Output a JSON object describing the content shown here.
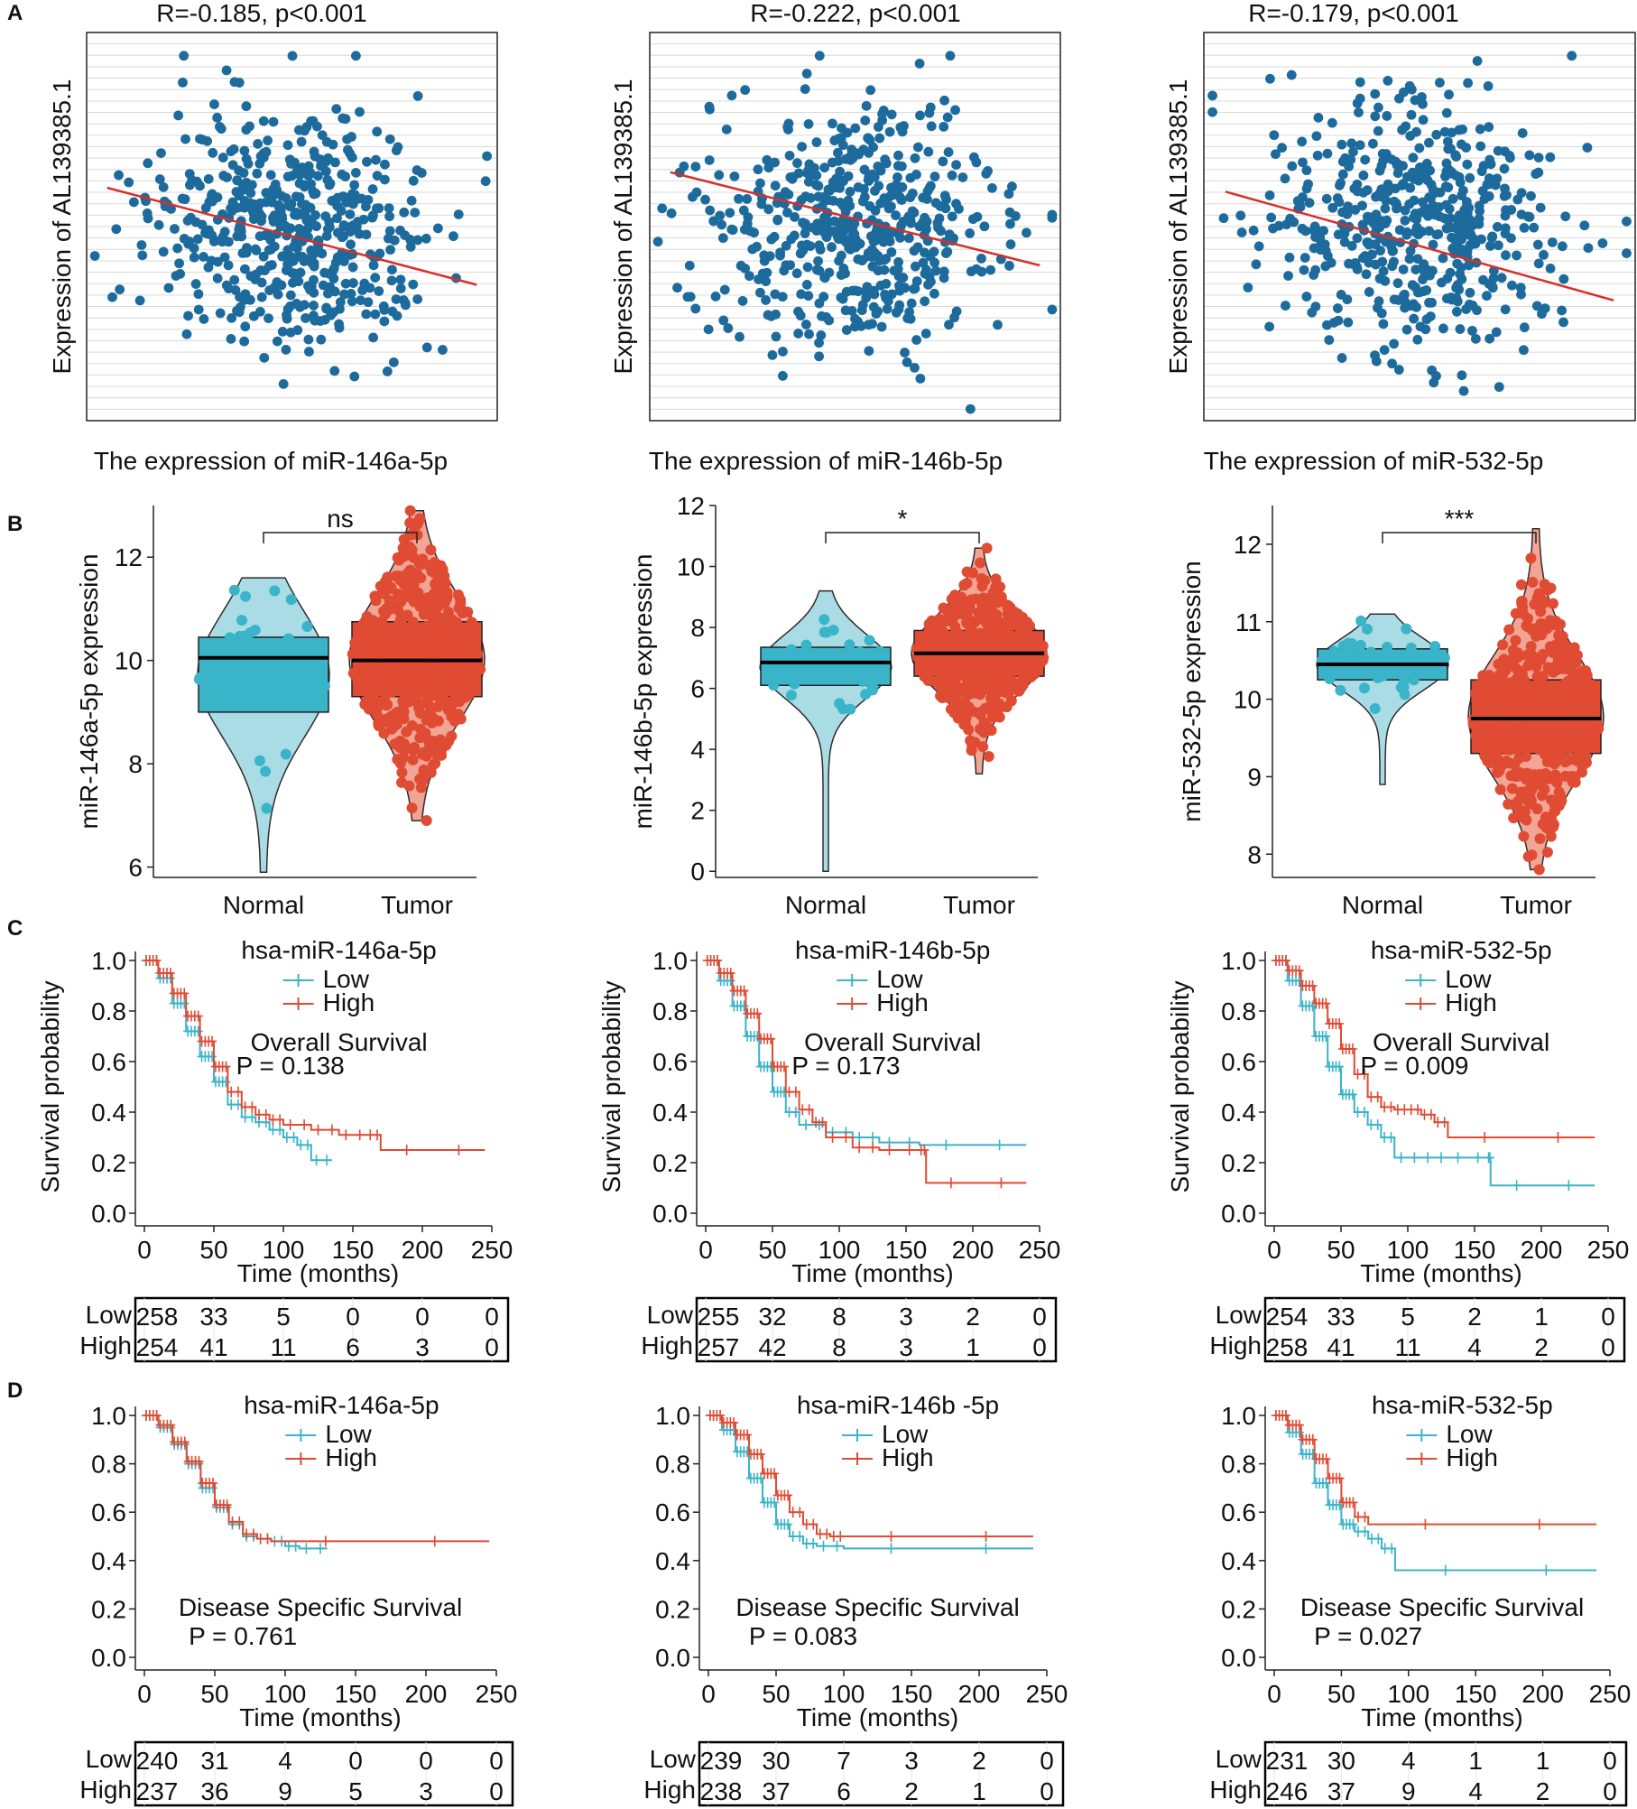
{
  "colors": {
    "scatter_point": "#1d6a9c",
    "fit_line": "#d7302a",
    "low": "#3ab4c8",
    "high": "#e04b33",
    "grid": "#d9d9d9",
    "axis": "#222222"
  },
  "panel_letters": [
    "A",
    "B",
    "C",
    "D"
  ],
  "chart_data": [
    {
      "type": "scatter",
      "panel": "A",
      "id": "a1",
      "title": "R=-0.185, p<0.001",
      "xlabel": "The expression of miR-146a-5p",
      "ylabel": "Expression of AL139385.1",
      "grid": true,
      "n_points_approx": 520,
      "trend": {
        "x": [
          0,
          1
        ],
        "y": [
          0.6,
          0.35
        ]
      }
    },
    {
      "type": "scatter",
      "panel": "A",
      "id": "a2",
      "title": "R=-0.222, p<0.001",
      "xlabel": "The expression of miR-146b-5p",
      "ylabel": "Expression of AL139385.1",
      "grid": true,
      "n_points_approx": 520,
      "trend": {
        "x": [
          0,
          1
        ],
        "y": [
          0.64,
          0.4
        ]
      }
    },
    {
      "type": "scatter",
      "panel": "A",
      "id": "a3",
      "title": "R=-0.179, p<0.001",
      "xlabel": "The expression of miR-532-5p",
      "ylabel": "Expression of AL139385.1",
      "grid": true,
      "n_points_approx": 520,
      "trend": {
        "x": [
          0,
          1
        ],
        "y": [
          0.59,
          0.31
        ]
      }
    },
    {
      "type": "violin_box",
      "panel": "B",
      "id": "b1",
      "ylabel": "miR-146a-5p expression",
      "categories": [
        "Normal",
        "Tumor"
      ],
      "ylim": [
        5.8,
        13.0
      ],
      "yticks": [
        6,
        8,
        10,
        12
      ],
      "significance": "ns",
      "groups": [
        {
          "name": "Normal",
          "min": 5.9,
          "q1": 9.0,
          "median": 10.05,
          "q3": 10.45,
          "max": 11.6,
          "n": 36
        },
        {
          "name": "Tumor",
          "min": 6.9,
          "q1": 9.3,
          "median": 10.0,
          "q3": 10.75,
          "max": 12.9,
          "n": 480
        }
      ]
    },
    {
      "type": "violin_box",
      "panel": "B",
      "id": "b2",
      "ylabel": "miR-146b-5p expression",
      "categories": [
        "Normal",
        "Tumor"
      ],
      "ylim": [
        -0.2,
        12.0
      ],
      "yticks": [
        0,
        2,
        4,
        6,
        8,
        10,
        12
      ],
      "significance": "*",
      "groups": [
        {
          "name": "Normal",
          "min": 0.0,
          "q1": 6.1,
          "median": 6.85,
          "q3": 7.35,
          "max": 9.2,
          "n": 36
        },
        {
          "name": "Tumor",
          "min": 3.2,
          "q1": 6.4,
          "median": 7.15,
          "q3": 7.9,
          "max": 10.6,
          "n": 480
        }
      ]
    },
    {
      "type": "violin_box",
      "panel": "B",
      "id": "b3",
      "ylabel": "miR-532-5p expression",
      "categories": [
        "Normal",
        "Tumor"
      ],
      "ylim": [
        7.7,
        12.5
      ],
      "yticks": [
        8,
        9,
        10,
        11,
        12
      ],
      "significance": "***",
      "groups": [
        {
          "name": "Normal",
          "min": 8.9,
          "q1": 10.25,
          "median": 10.45,
          "q3": 10.65,
          "max": 11.1,
          "n": 36
        },
        {
          "name": "Tumor",
          "min": 7.8,
          "q1": 9.3,
          "median": 9.75,
          "q3": 10.25,
          "max": 12.2,
          "n": 480
        }
      ]
    },
    {
      "type": "survival",
      "panel": "C",
      "id": "c1",
      "title": "hsa-miR-146a-5p",
      "subtitle": "Overall Survival",
      "pvalue": "P = 0.138",
      "ylabel": "Survival probability",
      "xlabel": "Time (months)",
      "xlim": [
        0,
        250
      ],
      "xticks": [
        0,
        50,
        100,
        150,
        200,
        250
      ],
      "ylim": [
        0,
        1
      ],
      "yticks": [
        "0.0",
        "0.2",
        "0.4",
        "0.6",
        "0.8",
        "1.0"
      ],
      "legend": [
        "Low",
        "High"
      ],
      "series": [
        {
          "name": "Low",
          "x": [
            0,
            10,
            20,
            30,
            40,
            50,
            60,
            70,
            80,
            90,
            100,
            110,
            120,
            135
          ],
          "y": [
            1.0,
            0.93,
            0.83,
            0.72,
            0.62,
            0.52,
            0.43,
            0.38,
            0.36,
            0.33,
            0.3,
            0.27,
            0.21,
            0.21
          ]
        },
        {
          "name": "High",
          "x": [
            0,
            10,
            20,
            30,
            40,
            50,
            60,
            70,
            80,
            90,
            100,
            120,
            140,
            160,
            170,
            245
          ],
          "y": [
            1.0,
            0.95,
            0.87,
            0.78,
            0.68,
            0.58,
            0.48,
            0.42,
            0.39,
            0.37,
            0.35,
            0.33,
            0.31,
            0.31,
            0.25,
            0.25
          ]
        }
      ],
      "risk_table": {
        "labels": [
          "Low",
          "High"
        ],
        "Low": [
          "258",
          "33",
          "5",
          "0",
          "0",
          "0"
        ],
        "High": [
          "254",
          "41",
          "11",
          "6",
          "3",
          "0"
        ]
      }
    },
    {
      "type": "survival",
      "panel": "C",
      "id": "c2",
      "title": "hsa-miR-146b-5p",
      "subtitle": "Overall Survival",
      "pvalue": "P = 0.173",
      "ylabel": "Survival probability",
      "xlabel": "Time (months)",
      "xlim": [
        0,
        250
      ],
      "xticks": [
        0,
        50,
        100,
        150,
        200,
        250
      ],
      "ylim": [
        0,
        1
      ],
      "yticks": [
        "0.0",
        "0.2",
        "0.4",
        "0.6",
        "0.8",
        "1.0"
      ],
      "legend": [
        "Low",
        "High"
      ],
      "series": [
        {
          "name": "Low",
          "x": [
            0,
            10,
            20,
            30,
            40,
            50,
            60,
            70,
            90,
            110,
            130,
            160,
            240
          ],
          "y": [
            1.0,
            0.92,
            0.82,
            0.7,
            0.58,
            0.48,
            0.4,
            0.35,
            0.32,
            0.3,
            0.28,
            0.27,
            0.27
          ]
        },
        {
          "name": "High",
          "x": [
            0,
            10,
            20,
            30,
            40,
            50,
            60,
            70,
            80,
            90,
            110,
            130,
            160,
            165,
            240
          ],
          "y": [
            1.0,
            0.95,
            0.88,
            0.79,
            0.69,
            0.58,
            0.48,
            0.41,
            0.36,
            0.3,
            0.26,
            0.25,
            0.25,
            0.12,
            0.12
          ]
        }
      ],
      "risk_table": {
        "labels": [
          "Low",
          "High"
        ],
        "Low": [
          "255",
          "32",
          "8",
          "3",
          "2",
          "0"
        ],
        "High": [
          "257",
          "42",
          "8",
          "3",
          "1",
          "0"
        ]
      }
    },
    {
      "type": "survival",
      "panel": "C",
      "id": "c3",
      "title": "hsa-miR-532-5p",
      "subtitle": "Overall Survival",
      "pvalue": "P = 0.009",
      "ylabel": "Survival probability",
      "xlabel": "Time (months)",
      "xlim": [
        0,
        250
      ],
      "xticks": [
        0,
        50,
        100,
        150,
        200,
        250
      ],
      "xticklabels": [
        "0",
        "50",
        "100",
        "150",
        "200",
        "250"
      ],
      "ylim": [
        0,
        1
      ],
      "yticks": [
        "0.0",
        "0.2",
        "0.4",
        "0.6",
        "0.8",
        "1.0"
      ],
      "legend": [
        "Low",
        "High"
      ],
      "series": [
        {
          "name": "Low",
          "x": [
            0,
            10,
            20,
            30,
            40,
            50,
            60,
            70,
            80,
            90,
            110,
            130,
            160,
            162,
            240
          ],
          "y": [
            1.0,
            0.92,
            0.82,
            0.7,
            0.58,
            0.47,
            0.4,
            0.35,
            0.3,
            0.22,
            0.22,
            0.22,
            0.22,
            0.11,
            0.11
          ]
        },
        {
          "name": "High",
          "x": [
            0,
            10,
            20,
            30,
            40,
            50,
            60,
            70,
            80,
            90,
            100,
            110,
            120,
            130,
            240
          ],
          "y": [
            1.0,
            0.96,
            0.9,
            0.83,
            0.75,
            0.65,
            0.55,
            0.46,
            0.42,
            0.41,
            0.41,
            0.39,
            0.36,
            0.3,
            0.3
          ]
        }
      ],
      "risk_table": {
        "labels": [
          "Low",
          "High"
        ],
        "Low": [
          "254",
          "33",
          "5",
          "2",
          "1",
          "0"
        ],
        "High": [
          "258",
          "41",
          "11",
          "4",
          "2",
          "0"
        ]
      }
    },
    {
      "type": "survival",
      "panel": "D",
      "id": "d1",
      "title": "hsa-miR-146a-5p",
      "subtitle": "Disease Specific Survival",
      "pvalue": "P = 0.761",
      "xlabel": "Time (months)",
      "xlim": [
        0,
        250
      ],
      "xticks": [
        0,
        50,
        100,
        150,
        200,
        250
      ],
      "ylim": [
        0,
        1
      ],
      "yticks": [
        "0.0",
        "0.2",
        "0.4",
        "0.6",
        "0.8",
        "1.0"
      ],
      "legend": [
        "Low",
        "High"
      ],
      "series": [
        {
          "name": "Low",
          "x": [
            0,
            10,
            20,
            30,
            40,
            50,
            60,
            70,
            80,
            90,
            100,
            110,
            130
          ],
          "y": [
            1.0,
            0.95,
            0.88,
            0.8,
            0.7,
            0.62,
            0.55,
            0.5,
            0.49,
            0.48,
            0.46,
            0.45,
            0.45
          ]
        },
        {
          "name": "High",
          "x": [
            0,
            10,
            20,
            30,
            40,
            50,
            60,
            70,
            80,
            90,
            245
          ],
          "y": [
            1.0,
            0.96,
            0.89,
            0.81,
            0.72,
            0.63,
            0.56,
            0.51,
            0.49,
            0.48,
            0.48
          ]
        }
      ],
      "risk_table": {
        "labels": [
          "Low",
          "High"
        ],
        "Low": [
          "240",
          "31",
          "4",
          "0",
          "0",
          "0"
        ],
        "High": [
          "237",
          "36",
          "9",
          "5",
          "3",
          "0"
        ]
      }
    },
    {
      "type": "survival",
      "panel": "D",
      "id": "d2",
      "title": "hsa-miR-146b -5p",
      "subtitle": "Disease Specific Survival",
      "pvalue": "P = 0.083",
      "xlabel": "Time (months)",
      "xlim": [
        0,
        250
      ],
      "xticks": [
        0,
        50,
        100,
        150,
        200,
        250
      ],
      "ylim": [
        0,
        1
      ],
      "yticks": [
        "0.0",
        "0.2",
        "0.4",
        "0.6",
        "0.8",
        "1.0"
      ],
      "legend": [
        "Low",
        "High"
      ],
      "series": [
        {
          "name": "Low",
          "x": [
            0,
            10,
            20,
            30,
            40,
            50,
            60,
            70,
            80,
            100,
            240
          ],
          "y": [
            1.0,
            0.94,
            0.85,
            0.74,
            0.64,
            0.55,
            0.5,
            0.47,
            0.46,
            0.45,
            0.45
          ]
        },
        {
          "name": "High",
          "x": [
            0,
            10,
            20,
            30,
            40,
            50,
            60,
            70,
            80,
            90,
            100,
            240
          ],
          "y": [
            1.0,
            0.97,
            0.92,
            0.84,
            0.76,
            0.67,
            0.6,
            0.55,
            0.51,
            0.5,
            0.5,
            0.5
          ]
        }
      ],
      "risk_table": {
        "labels": [
          "Low",
          "High"
        ],
        "Low": [
          "239",
          "30",
          "7",
          "3",
          "2",
          "0"
        ],
        "High": [
          "238",
          "37",
          "6",
          "2",
          "1",
          "0"
        ]
      }
    },
    {
      "type": "survival",
      "panel": "D",
      "id": "d3",
      "title": "hsa-miR-532-5p",
      "subtitle": "Disease Specific Survival",
      "pvalue": "P = 0.027",
      "xlabel": "Time (months)",
      "xlim": [
        0,
        250
      ],
      "xticks": [
        0,
        50,
        100,
        150,
        200,
        250
      ],
      "ylim": [
        0,
        1
      ],
      "yticks": [
        "0.0",
        "0.2",
        "0.4",
        "0.6",
        "0.8",
        "1.0"
      ],
      "legend": [
        "Low",
        "High"
      ],
      "series": [
        {
          "name": "Low",
          "x": [
            0,
            10,
            20,
            30,
            40,
            50,
            60,
            70,
            80,
            90,
            240
          ],
          "y": [
            1.0,
            0.93,
            0.84,
            0.72,
            0.63,
            0.55,
            0.52,
            0.49,
            0.45,
            0.36,
            0.36
          ]
        },
        {
          "name": "High",
          "x": [
            0,
            10,
            20,
            30,
            40,
            50,
            60,
            70,
            240
          ],
          "y": [
            1.0,
            0.96,
            0.9,
            0.82,
            0.74,
            0.64,
            0.58,
            0.55,
            0.55
          ]
        }
      ],
      "risk_table": {
        "labels": [
          "Low",
          "High"
        ],
        "Low": [
          "231",
          "30",
          "4",
          "1",
          "1",
          "0"
        ],
        "High": [
          "246",
          "37",
          "9",
          "4",
          "2",
          "0"
        ]
      }
    }
  ]
}
